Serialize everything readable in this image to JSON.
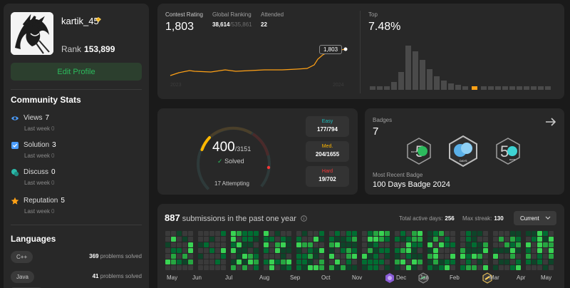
{
  "profile": {
    "username": "kartik_45",
    "rank_label": "Rank",
    "rank_value": "153,899",
    "edit_button": "Edit Profile"
  },
  "community": {
    "title": "Community Stats",
    "items": [
      {
        "label": "Views",
        "value": "7",
        "sub": "Last week",
        "sub_value": "0",
        "icon": "eye-icon",
        "color": "#4b9dff"
      },
      {
        "label": "Solution",
        "value": "3",
        "sub": "Last week",
        "sub_value": "0",
        "icon": "checkbox-icon",
        "color": "#4b9dff"
      },
      {
        "label": "Discuss",
        "value": "0",
        "sub": "Last week",
        "sub_value": "0",
        "icon": "chat-icon",
        "color": "#2cbbab"
      },
      {
        "label": "Reputation",
        "value": "5",
        "sub": "Last week",
        "sub_value": "0",
        "icon": "star-icon",
        "color": "#ffa116"
      }
    ]
  },
  "languages": {
    "title": "Languages",
    "items": [
      {
        "name": "C++",
        "count": "369",
        "suffix": "problems solved"
      },
      {
        "name": "Java",
        "count": "41",
        "suffix": "problems solved"
      }
    ]
  },
  "contest": {
    "rating_label": "Contest Rating",
    "rating_value": "1,803",
    "global_label": "Global Ranking",
    "global_value": "38,614",
    "global_total": "/535,861",
    "attended_label": "Attended",
    "attended_value": "22",
    "top_label": "Top",
    "top_value": "7.48%",
    "tooltip": "1,803",
    "year_start": "2023",
    "year_end": "2024",
    "accent": "#ffa116"
  },
  "solved": {
    "count": "400",
    "total": "/3151",
    "solved_label": "Solved",
    "attempting": "17 Attempting",
    "easy": {
      "label": "Easy",
      "value": "177/794",
      "color": "#1cbaba"
    },
    "medium": {
      "label": "Med.",
      "value": "204/1655",
      "color": "#ffb700"
    },
    "hard": {
      "label": "Hard",
      "value": "19/702",
      "color": "#f63737"
    }
  },
  "badges": {
    "label": "Badges",
    "count": "7",
    "recent_label": "Most Recent Badge",
    "recent_value": "100 Days Badge 2024"
  },
  "submissions": {
    "count": "887",
    "title": "submissions in the past one year",
    "active_label": "Total active days:",
    "active_value": "256",
    "streak_label": "Max streak:",
    "streak_value": "130",
    "range_select": "Current",
    "months": [
      "May",
      "Jun",
      "Jul",
      "Aug",
      "Sep",
      "Oct",
      "Nov",
      "Dec",
      "Jan",
      "Feb",
      "Mar",
      "Apr",
      "May"
    ]
  }
}
